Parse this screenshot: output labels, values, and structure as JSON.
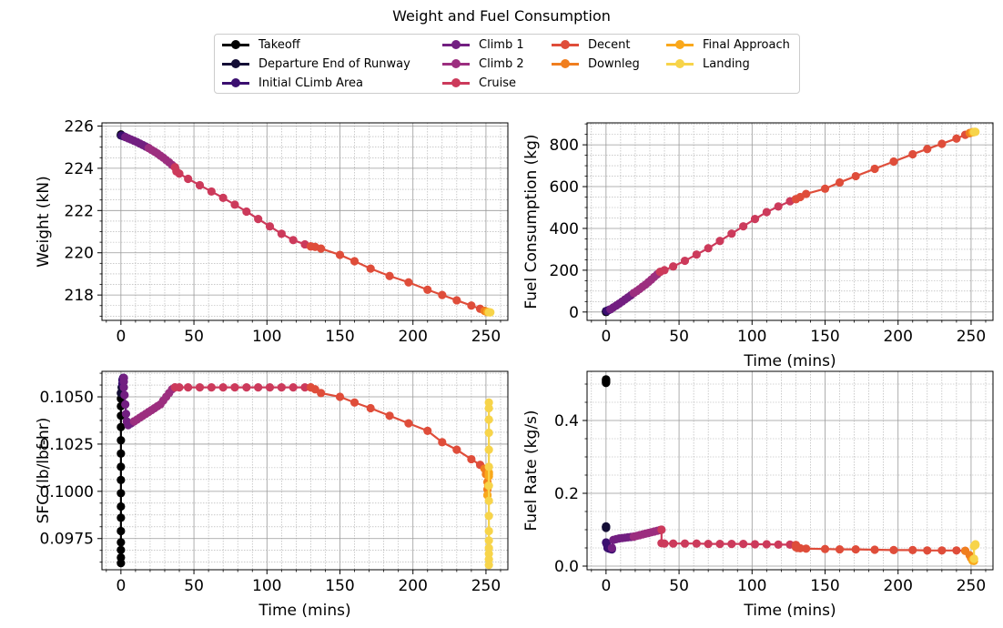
{
  "title": "Weight and Fuel Consumption",
  "legend": [
    {
      "name": "Takeoff",
      "color": "#000004"
    },
    {
      "name": "Departure End of Runway",
      "color": "#1b0c41"
    },
    {
      "name": "Initial CLimb Area",
      "color": "#4a0c6b"
    },
    {
      "name": "Climb 1",
      "color": "#781c6d"
    },
    {
      "name": "Climb 2",
      "color": "#a52c60"
    },
    {
      "name": "Cruise",
      "color": "#cf4446"
    },
    {
      "name": "Decent",
      "color": "#ed6925"
    },
    {
      "name": "Downleg",
      "color": "#fb9b06"
    },
    {
      "name": "Final Approach",
      "color": "#f7d13d"
    },
    {
      "name": "Landing",
      "color": "#fcffa4"
    }
  ],
  "chart_data": [
    {
      "type": "line",
      "ylabel": "Weight (kN)",
      "xlabel": "",
      "xlim": [
        -13,
        265
      ],
      "ylim": [
        216.8,
        226.15
      ],
      "xticks": [
        0,
        50,
        100,
        150,
        200,
        250
      ],
      "yticks": [
        218,
        220,
        222,
        224,
        226
      ],
      "series": [
        {
          "name": "Takeoff",
          "color": "#000000",
          "x": [
            0,
            0,
            0
          ],
          "y": [
            225.6,
            225.58,
            225.56
          ]
        },
        {
          "name": "Departure End of Runway",
          "color": "#140e36",
          "x": [
            0,
            0.5
          ],
          "y": [
            225.56,
            225.55
          ]
        },
        {
          "name": "Initial CLimb Area",
          "color": "#3b0f70",
          "x": [
            0.5,
            1,
            2,
            3
          ],
          "y": [
            225.55,
            225.53,
            225.51,
            225.48
          ]
        },
        {
          "name": "Climb 1",
          "color": "#721f81",
          "x": [
            3,
            5,
            7,
            9,
            11,
            13,
            15,
            17,
            19
          ],
          "y": [
            225.48,
            225.42,
            225.36,
            225.3,
            225.24,
            225.17,
            225.1,
            225.03,
            224.96
          ]
        },
        {
          "name": "Climb 2",
          "color": "#9c2e7f",
          "x": [
            19,
            21,
            23,
            25,
            27,
            29,
            31,
            33,
            35,
            37
          ],
          "y": [
            224.96,
            224.87,
            224.79,
            224.7,
            224.6,
            224.5,
            224.39,
            224.28,
            224.16,
            224.05
          ]
        },
        {
          "name": "Cruise",
          "color": "#cc3a5b",
          "x": [
            37,
            38,
            40,
            46,
            54,
            62,
            70,
            78,
            86,
            94,
            102,
            110,
            118,
            126,
            130
          ],
          "y": [
            224.05,
            223.85,
            223.75,
            223.5,
            223.2,
            222.9,
            222.6,
            222.28,
            221.95,
            221.6,
            221.25,
            220.9,
            220.6,
            220.4,
            220.3
          ]
        },
        {
          "name": "Decent",
          "color": "#df4d3a",
          "x": [
            130,
            133,
            137,
            150,
            160,
            171,
            184,
            197,
            210,
            220,
            230,
            240,
            246,
            249
          ],
          "y": [
            220.3,
            220.28,
            220.2,
            219.9,
            219.6,
            219.25,
            218.9,
            218.6,
            218.25,
            218.0,
            217.75,
            217.5,
            217.35,
            217.25
          ]
        },
        {
          "name": "Downleg",
          "color": "#f07e1f",
          "x": [
            249,
            250,
            251
          ],
          "y": [
            217.25,
            217.22,
            217.2
          ]
        },
        {
          "name": "Final Approach",
          "color": "#f9a81c",
          "x": [
            251,
            251.5,
            252
          ],
          "y": [
            217.2,
            217.19,
            217.19
          ]
        },
        {
          "name": "Landing",
          "color": "#f7d44a",
          "x": [
            252,
            252.5,
            253
          ],
          "y": [
            217.19,
            217.18,
            217.18
          ]
        }
      ]
    },
    {
      "type": "line",
      "ylabel": "Fuel Consumption (kg)",
      "xlabel": "Time (mins)",
      "xlim": [
        -13,
        265
      ],
      "ylim": [
        -40,
        905
      ],
      "xticks": [
        0,
        50,
        100,
        150,
        200,
        250
      ],
      "yticks": [
        0,
        200,
        400,
        600,
        800
      ],
      "series": [
        {
          "name": "Takeoff",
          "color": "#000000",
          "x": [
            0,
            0,
            0
          ],
          "y": [
            0,
            2,
            4
          ]
        },
        {
          "name": "Departure End of Runway",
          "color": "#140e36",
          "x": [
            0,
            0.5
          ],
          "y": [
            4,
            5
          ]
        },
        {
          "name": "Initial CLimb Area",
          "color": "#3b0f70",
          "x": [
            0.5,
            1,
            2,
            3
          ],
          "y": [
            5,
            7,
            10,
            13
          ]
        },
        {
          "name": "Climb 1",
          "color": "#721f81",
          "x": [
            3,
            5,
            7,
            9,
            11,
            13,
            15,
            17,
            19
          ],
          "y": [
            13,
            22,
            31,
            40,
            50,
            60,
            70,
            80,
            91
          ]
        },
        {
          "name": "Climb 2",
          "color": "#9c2e7f",
          "x": [
            19,
            21,
            23,
            25,
            27,
            29,
            31,
            33,
            35,
            37
          ],
          "y": [
            91,
            100,
            110,
            121,
            131,
            143,
            155,
            168,
            180,
            192
          ]
        },
        {
          "name": "Cruise",
          "color": "#cc3a5b",
          "x": [
            37,
            40,
            46,
            54,
            62,
            70,
            78,
            86,
            94,
            102,
            110,
            118,
            126,
            130
          ],
          "y": [
            192,
            200,
            218,
            245,
            275,
            305,
            340,
            375,
            410,
            445,
            478,
            505,
            530,
            540
          ]
        },
        {
          "name": "Decent",
          "color": "#df4d3a",
          "x": [
            130,
            133,
            137,
            150,
            160,
            171,
            184,
            197,
            210,
            220,
            230,
            240,
            246,
            249
          ],
          "y": [
            540,
            550,
            565,
            590,
            620,
            650,
            685,
            720,
            755,
            780,
            805,
            830,
            848,
            856
          ]
        },
        {
          "name": "Downleg",
          "color": "#f07e1f",
          "x": [
            249,
            250,
            251
          ],
          "y": [
            856,
            858,
            860
          ]
        },
        {
          "name": "Final Approach",
          "color": "#f9a81c",
          "x": [
            251,
            251.5,
            252
          ],
          "y": [
            860,
            861,
            861
          ]
        },
        {
          "name": "Landing",
          "color": "#f7d44a",
          "x": [
            252,
            252.5,
            253
          ],
          "y": [
            861,
            862,
            862
          ]
        }
      ]
    },
    {
      "type": "line",
      "ylabel": "SFC (lb/lbf-hr)",
      "xlabel": "Time (mins)",
      "xlim": [
        -13,
        265
      ],
      "ylim": [
        0.09585,
        0.10635
      ],
      "xticks": [
        0,
        50,
        100,
        150,
        200,
        250
      ],
      "yticks": [
        0.0975,
        0.1,
        0.1025,
        0.105
      ],
      "ytick_labels": [
        "0.0975",
        "0.1000",
        "0.1025",
        "0.1050"
      ],
      "series": [
        {
          "name": "Takeoff",
          "color": "#000000",
          "x": [
            0,
            0,
            0,
            0,
            0,
            0,
            0,
            0,
            0,
            0,
            0,
            0,
            0,
            0,
            0,
            0,
            0
          ],
          "y": [
            0.0962,
            0.0965,
            0.0969,
            0.0973,
            0.0979,
            0.0986,
            0.0992,
            0.0999,
            0.1006,
            0.1013,
            0.102,
            0.1027,
            0.1034,
            0.104,
            0.1045,
            0.1049,
            0.1052
          ]
        },
        {
          "name": "Departure End of Runway",
          "color": "#140e36",
          "x": [
            0,
            0.5,
            1
          ],
          "y": [
            0.1052,
            0.1055,
            0.1057
          ]
        },
        {
          "name": "Initial CLimb Area",
          "color": "#3b0f70",
          "x": [
            1,
            1,
            1.5,
            2
          ],
          "y": [
            0.1057,
            0.1059,
            0.106,
            0.106
          ]
        },
        {
          "name": "Climb 1",
          "color": "#721f81",
          "x": [
            2,
            2,
            2,
            2.5,
            3,
            3.5,
            4,
            5,
            7,
            9
          ],
          "y": [
            0.106,
            0.1058,
            0.1055,
            0.1051,
            0.1046,
            0.1041,
            0.1037,
            0.1035,
            0.1036,
            0.1037
          ]
        },
        {
          "name": "Climb 2",
          "color": "#9c2e7f",
          "x": [
            9,
            11,
            13,
            15,
            17,
            19,
            21,
            23,
            25,
            27,
            29,
            31,
            33,
            35,
            37
          ],
          "y": [
            0.1037,
            0.1038,
            0.1039,
            0.104,
            0.1041,
            0.1042,
            0.1043,
            0.1044,
            0.1045,
            0.1046,
            0.1048,
            0.105,
            0.1052,
            0.1054,
            0.1055
          ]
        },
        {
          "name": "Cruise",
          "color": "#cc3a5b",
          "x": [
            37,
            40,
            46,
            54,
            62,
            70,
            78,
            86,
            94,
            102,
            110,
            118,
            126,
            130
          ],
          "y": [
            0.1055,
            0.1055,
            0.1055,
            0.1055,
            0.1055,
            0.1055,
            0.1055,
            0.1055,
            0.1055,
            0.1055,
            0.1055,
            0.1055,
            0.1055,
            0.1055
          ]
        },
        {
          "name": "Decent",
          "color": "#df4d3a",
          "x": [
            130,
            133,
            137,
            150,
            160,
            171,
            184,
            197,
            210,
            220,
            230,
            240,
            246,
            249
          ],
          "y": [
            0.1055,
            0.1054,
            0.1052,
            0.105,
            0.1047,
            0.1044,
            0.104,
            0.1036,
            0.1032,
            0.1026,
            0.1022,
            0.1017,
            0.1014,
            0.1012
          ]
        },
        {
          "name": "Downleg",
          "color": "#f07e1f",
          "x": [
            249,
            250,
            251,
            251,
            251
          ],
          "y": [
            0.1012,
            0.1009,
            0.1005,
            0.1001,
            0.0998
          ]
        },
        {
          "name": "Final Approach",
          "color": "#f9a81c",
          "x": [
            251,
            251.5,
            252,
            252,
            252
          ],
          "y": [
            0.0998,
            0.1003,
            0.1008,
            0.101,
            0.1009
          ]
        },
        {
          "name": "Landing",
          "color": "#f7d44a",
          "x": [
            252,
            252,
            252,
            252,
            252,
            252,
            252,
            252,
            252,
            252,
            252,
            252,
            252,
            252,
            252
          ],
          "y": [
            0.1047,
            0.1044,
            0.1038,
            0.1031,
            0.1022,
            0.1013,
            0.1003,
            0.0995,
            0.0987,
            0.0979,
            0.0974,
            0.097,
            0.0967,
            0.0964,
            0.0961
          ]
        }
      ]
    },
    {
      "type": "line",
      "ylabel": "Fuel Rate (kg/s)",
      "xlabel": "Time (mins)",
      "xlim": [
        -13,
        265
      ],
      "ylim": [
        -0.01,
        0.535
      ],
      "xticks": [
        0,
        50,
        100,
        150,
        200,
        250
      ],
      "yticks": [
        0,
        0.2,
        0.4
      ],
      "ytick_labels": [
        "0.0",
        "0.2",
        "0.4"
      ],
      "series": [
        {
          "name": "Takeoff",
          "color": "#000000",
          "x": [
            0,
            0,
            0,
            0,
            0,
            0
          ],
          "y": [
            0.503,
            0.505,
            0.507,
            0.509,
            0.511,
            0.513
          ]
        },
        {
          "name": "Departure End of Runway",
          "color": "#140e36",
          "x": [
            0,
            0,
            0,
            0
          ],
          "y": [
            0.105,
            0.107,
            0.108,
            0.109
          ]
        },
        {
          "name": "Initial CLimb Area",
          "color": "#3b0f70",
          "x": [
            0,
            0.5,
            1,
            2,
            3,
            4,
            4
          ],
          "y": [
            0.065,
            0.06,
            0.05,
            0.048,
            0.047,
            0.046,
            0.05
          ]
        },
        {
          "name": "Climb 1",
          "color": "#721f81",
          "x": [
            4,
            5,
            7,
            9,
            11,
            13,
            15,
            17,
            19
          ],
          "y": [
            0.05,
            0.072,
            0.074,
            0.076,
            0.077,
            0.078,
            0.079,
            0.08,
            0.081
          ]
        },
        {
          "name": "Climb 2",
          "color": "#9c2e7f",
          "x": [
            19,
            21,
            23,
            25,
            27,
            29,
            31,
            33,
            35,
            37,
            38
          ],
          "y": [
            0.081,
            0.083,
            0.085,
            0.087,
            0.089,
            0.091,
            0.093,
            0.095,
            0.097,
            0.099,
            0.1
          ]
        },
        {
          "name": "Cruise",
          "color": "#cc3a5b",
          "x": [
            38,
            38,
            40,
            46,
            54,
            62,
            70,
            78,
            86,
            94,
            102,
            110,
            118,
            126,
            130
          ],
          "y": [
            0.1,
            0.063,
            0.062,
            0.062,
            0.062,
            0.062,
            0.061,
            0.061,
            0.061,
            0.061,
            0.06,
            0.06,
            0.059,
            0.059,
            0.058
          ]
        },
        {
          "name": "Decent",
          "color": "#df4d3a",
          "x": [
            130,
            130,
            131,
            133,
            137,
            150,
            160,
            171,
            184,
            197,
            210,
            220,
            230,
            240,
            246
          ],
          "y": [
            0.058,
            0.052,
            0.05,
            0.049,
            0.048,
            0.047,
            0.046,
            0.046,
            0.045,
            0.044,
            0.044,
            0.043,
            0.043,
            0.043,
            0.042
          ]
        },
        {
          "name": "Downleg",
          "color": "#f07e1f",
          "x": [
            246,
            249,
            250,
            251
          ],
          "y": [
            0.042,
            0.03,
            0.022,
            0.018
          ]
        },
        {
          "name": "Final Approach",
          "color": "#f9a81c",
          "x": [
            251,
            251,
            252,
            252
          ],
          "y": [
            0.018,
            0.015,
            0.014,
            0.02
          ]
        },
        {
          "name": "Landing",
          "color": "#f7d44a",
          "x": [
            252,
            252,
            253,
            253
          ],
          "y": [
            0.02,
            0.055,
            0.058,
            0.06
          ]
        }
      ]
    }
  ]
}
